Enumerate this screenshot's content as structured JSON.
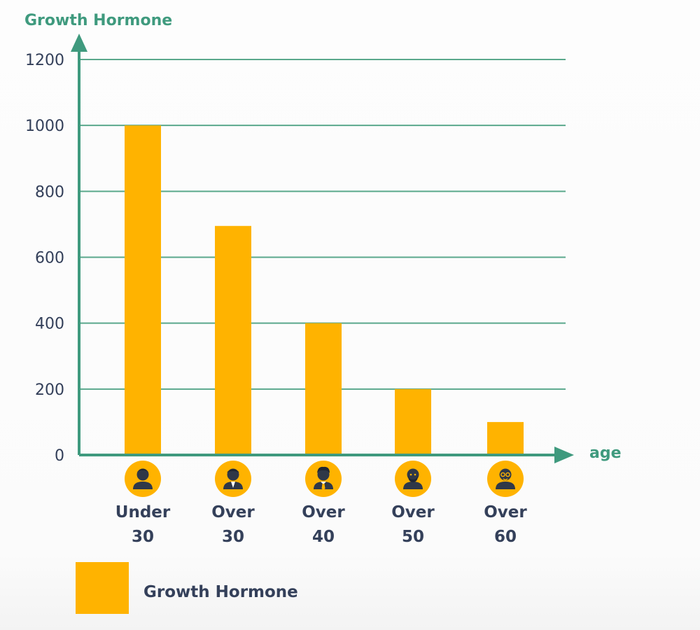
{
  "chart_data": {
    "type": "bar",
    "ylabel": "Growth Hormone",
    "xlabel": "age",
    "categories": [
      "Under 30",
      "Over 30",
      "Over 40",
      "Over 50",
      "Over 60"
    ],
    "category_lines": [
      [
        "Under",
        "30"
      ],
      [
        "Over",
        "30"
      ],
      [
        "Over",
        "40"
      ],
      [
        "Over",
        "50"
      ],
      [
        "Over",
        "60"
      ]
    ],
    "category_icons": [
      "young-man-icon",
      "man-in-suit-icon",
      "man-with-tie-icon",
      "bearded-man-icon",
      "older-man-with-glasses-icon"
    ],
    "values": [
      1000,
      695,
      400,
      200,
      100
    ],
    "ylim": [
      0,
      1200
    ],
    "yticks": [
      0,
      200,
      400,
      600,
      800,
      1000,
      1200
    ],
    "grid": true,
    "legend": [
      {
        "label": "Growth Hormone",
        "color": "#ffb300"
      }
    ],
    "legend_position": "bottom-left"
  },
  "colors": {
    "bar": "#ffb300",
    "axis": "#3f9a7e",
    "grid": "#5aa88c",
    "tick_text": "#34405a",
    "icon_circle": "#ffb300",
    "icon_figure": "#2f3848"
  }
}
